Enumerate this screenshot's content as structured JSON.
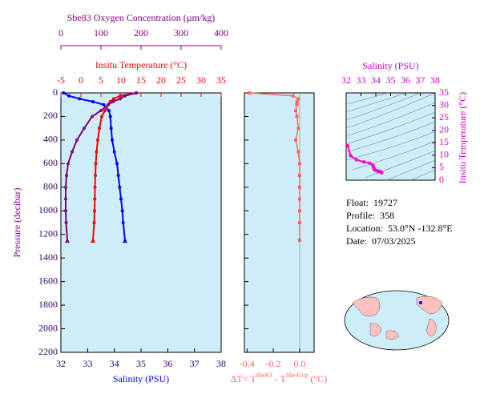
{
  "chart_data": [
    {
      "type": "profile",
      "y_label": "Pressure (decibar)",
      "ylim": [
        0,
        2200
      ],
      "yticks": [
        0,
        200,
        400,
        600,
        800,
        1000,
        1200,
        1400,
        1600,
        1800,
        2000,
        2200
      ],
      "y": [
        0,
        25,
        50,
        75,
        100,
        150,
        200,
        300,
        400,
        500,
        600,
        700,
        800,
        900,
        1000,
        1100,
        1250
      ],
      "series": [
        {
          "name": "Salinity (PSU)",
          "color": "#0000ff",
          "axis": "bottom",
          "xlim": [
            32,
            38
          ],
          "xticks": [
            32,
            33,
            34,
            35,
            36,
            37,
            38
          ],
          "values": [
            32.1,
            32.3,
            32.7,
            33.2,
            33.6,
            33.8,
            33.85,
            33.88,
            33.92,
            34.0,
            34.1,
            34.15,
            34.2,
            34.25,
            34.3,
            34.33,
            34.4
          ]
        },
        {
          "name": "Insitu Temperature (°C)",
          "color": "#ff0000",
          "axis": "top",
          "xlim": [
            -5,
            35
          ],
          "xticks": [
            -5,
            0,
            5,
            10,
            15,
            20,
            25,
            30,
            35
          ],
          "values": [
            13.8,
            9.8,
            8.2,
            7.3,
            6.8,
            6.0,
            5.2,
            4.6,
            4.2,
            3.9,
            3.7,
            3.6,
            3.5,
            3.45,
            3.4,
            3.3,
            3.0
          ]
        },
        {
          "name": "Sbe83 Oxygen Concentration (µm/kg)",
          "color": "#800080",
          "axis": "top2",
          "xlim": [
            0,
            400
          ],
          "xticks": [
            0,
            100,
            200,
            300,
            400
          ],
          "values": [
            188,
            160,
            148,
            130,
            118,
            100,
            78,
            58,
            40,
            28,
            18,
            14,
            12,
            12,
            12,
            13,
            16
          ]
        }
      ]
    },
    {
      "type": "delta",
      "x_label": [
        "ΔT= T",
        "Sbe83",
        " - T",
        "Sbe41cp",
        " (°C)"
      ],
      "color": "#ff6666",
      "xlim": [
        -0.42,
        0.11
      ],
      "xticks": [
        -0.4,
        -0.2,
        {
          "value": 0,
          "label": "0.0"
        }
      ],
      "values": [
        -0.38,
        -0.05,
        -0.01,
        -0.02,
        -0.02,
        -0.03,
        -0.02,
        -0.01,
        -0.03,
        -0.01,
        0,
        0,
        0,
        0,
        0,
        0,
        0
      ]
    },
    {
      "type": "ts",
      "x_label": "Salinity (PSU)",
      "y_label": "Insitu Temperature (°C)",
      "color": "#ff00cc",
      "xlim": [
        32,
        38
      ],
      "xticks": [
        32,
        33,
        34,
        35,
        36,
        37,
        38
      ],
      "ylim": [
        0,
        35
      ],
      "yticks": [
        0,
        5,
        10,
        15,
        20,
        25,
        30,
        35
      ]
    }
  ],
  "info": [
    {
      "label": "Float:",
      "value": "19727"
    },
    {
      "label": "Profile:",
      "value": "358"
    },
    {
      "label": "Location:",
      "value": "53.0°N  -132.8°E"
    },
    {
      "label": "Date:",
      "value": "07/03/2025"
    }
  ]
}
